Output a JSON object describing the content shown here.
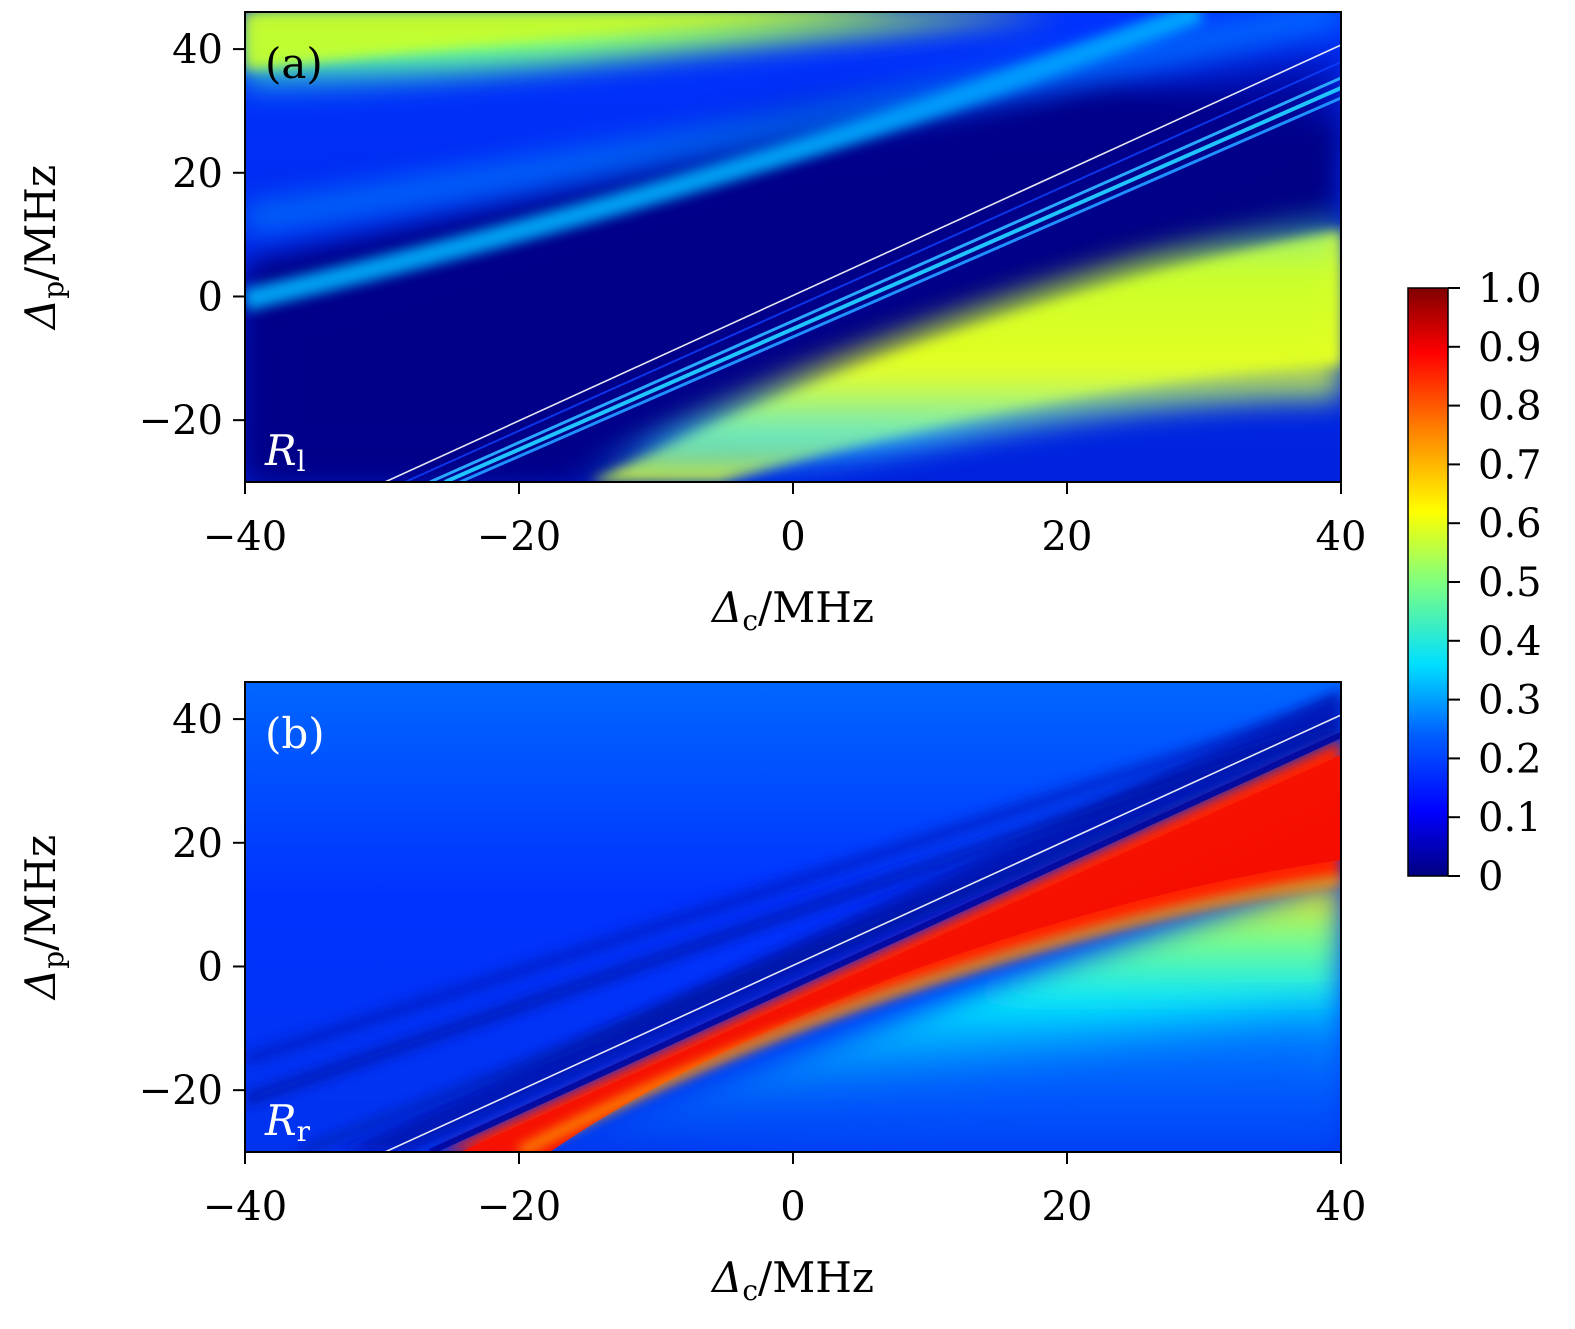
{
  "chart_data": [
    {
      "type": "heatmap",
      "panel_label": "(a)",
      "map_label": {
        "symbol": "R",
        "subscript": "l"
      },
      "xlabel": {
        "symbol": "Δ",
        "subscript": "c",
        "unit": "/MHz"
      },
      "ylabel": {
        "symbol": "Δ",
        "subscript": "p",
        "unit": "/MHz"
      },
      "xlim": [
        -40,
        40
      ],
      "ylim": [
        -30,
        46
      ],
      "xticks": [
        -40,
        -20,
        0,
        20,
        40
      ],
      "yticks": [
        -20,
        0,
        20,
        40
      ],
      "xtick_labels": [
        "−40",
        "−20",
        "0",
        "20",
        "40"
      ],
      "ytick_labels": [
        "−20",
        "0",
        "20",
        "40"
      ],
      "features": [
        {
          "name": "upper-left yellow band",
          "value": 0.55,
          "from": [
            -40,
            46
          ],
          "to": [
            20,
            45
          ]
        },
        {
          "name": "upper cyan band",
          "value": 0.25,
          "from": [
            -40,
            3
          ],
          "to": [
            30,
            45
          ]
        },
        {
          "name": "narrow resonance lines",
          "value": 0.3,
          "from": [
            -30,
            -30
          ],
          "to": [
            40,
            41
          ]
        },
        {
          "name": "lower yellow band",
          "value": 0.58,
          "from": [
            -15,
            -30
          ],
          "to": [
            40,
            6
          ]
        }
      ]
    },
    {
      "type": "heatmap",
      "panel_label": "(b)",
      "map_label": {
        "symbol": "R",
        "subscript": "r"
      },
      "xlabel": {
        "symbol": "Δ",
        "subscript": "c",
        "unit": "/MHz"
      },
      "ylabel": {
        "symbol": "Δ",
        "subscript": "p",
        "unit": "/MHz"
      },
      "xlim": [
        -40,
        40
      ],
      "ylim": [
        -30,
        46
      ],
      "xticks": [
        -40,
        -20,
        0,
        20,
        40
      ],
      "yticks": [
        -20,
        0,
        20,
        40
      ],
      "xtick_labels": [
        "−40",
        "−20",
        "0",
        "20",
        "40"
      ],
      "ytick_labels": [
        "−20",
        "0",
        "20",
        "40"
      ],
      "features": [
        {
          "name": "background",
          "value": 0.12
        },
        {
          "name": "red reflection band",
          "value": 0.95,
          "from": [
            -26,
            -30
          ],
          "to": [
            40,
            37
          ]
        },
        {
          "name": "cyan tail",
          "value": 0.35,
          "from": [
            -10,
            -30
          ],
          "to": [
            40,
            10
          ]
        }
      ]
    },
    {
      "type": "colorbar",
      "range": [
        0,
        1.0
      ],
      "ticks": [
        0,
        0.1,
        0.2,
        0.3,
        0.4,
        0.5,
        0.6,
        0.7,
        0.8,
        0.9,
        1.0
      ],
      "tick_labels": [
        "0",
        "0.1",
        "0.2",
        "0.3",
        "0.4",
        "0.5",
        "0.6",
        "0.7",
        "0.8",
        "0.9",
        "1.0"
      ],
      "colormap": "jet",
      "colors": [
        "#00007f",
        "#0000ff",
        "#007fff",
        "#00ffff",
        "#7fff7f",
        "#ffff00",
        "#ff7f00",
        "#ff0000",
        "#7f0000"
      ]
    }
  ]
}
